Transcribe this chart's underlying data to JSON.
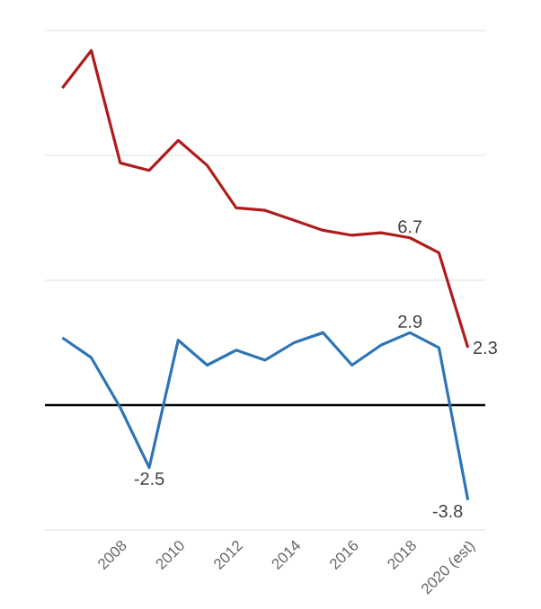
{
  "chart_data": {
    "type": "line",
    "categories": [
      null,
      null,
      "2008",
      null,
      "2010",
      null,
      "2012",
      null,
      "2014",
      null,
      "2016",
      null,
      "2018",
      null,
      "2020 (est)"
    ],
    "series": [
      {
        "color": "#b01c1c",
        "values": [
          12.7,
          14.2,
          9.7,
          9.4,
          10.6,
          9.6,
          7.9,
          7.8,
          7.4,
          7.0,
          6.8,
          6.9,
          6.7,
          6.1,
          2.3
        ],
        "value_labels": [
          null,
          null,
          null,
          null,
          null,
          null,
          null,
          null,
          null,
          null,
          null,
          null,
          "6.7",
          null,
          "2.3"
        ]
      },
      {
        "color": "#2e75b6",
        "values": [
          2.7,
          1.9,
          -0.1,
          -2.5,
          2.6,
          1.6,
          2.2,
          1.8,
          2.5,
          2.9,
          1.6,
          2.4,
          2.9,
          2.3,
          -3.8
        ],
        "value_labels": [
          null,
          null,
          null,
          "-2.5",
          null,
          null,
          null,
          null,
          null,
          null,
          null,
          null,
          "2.9",
          null,
          "-3.8"
        ]
      }
    ],
    "ylim": [
      -5,
      15
    ],
    "yticks": [
      {
        "value": -5,
        "label": null
      },
      {
        "value": 0,
        "label": null
      },
      {
        "value": 5,
        "label": null
      },
      {
        "value": 10,
        "label": null
      },
      {
        "value": 15,
        "label": null
      }
    ],
    "grid": "y",
    "tick_labels": "x",
    "marker": "none",
    "line_style": "solid",
    "ref_lines": [
      {
        "axis": "y",
        "value": 0,
        "color": "#000000"
      }
    ]
  }
}
